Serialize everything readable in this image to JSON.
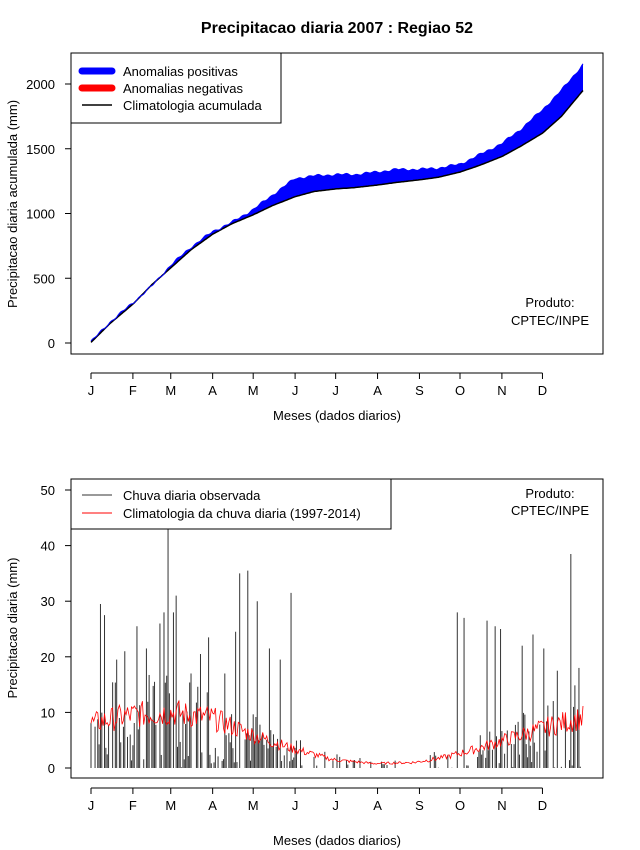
{
  "title": "Precipitacao diaria 2007 : Regiao 52",
  "months": [
    "J",
    "F",
    "M",
    "A",
    "M",
    "J",
    "J",
    "A",
    "S",
    "O",
    "N",
    "D"
  ],
  "colors": {
    "positive": "#0000ff",
    "negative": "#ff0000",
    "clim_line": "#000000",
    "obs": "#333333",
    "clim_daily": "#ff0000"
  },
  "chart_data": [
    {
      "type": "area",
      "name": "accumulated",
      "xlabel": "Meses (dados diarios)",
      "ylabel": "Precipitacao diaria acumulada (mm)",
      "ylim": [
        0,
        2200
      ],
      "yticks": [
        0,
        500,
        1000,
        1500,
        2000
      ],
      "legend_position": "top-left",
      "legend": [
        "Anomalias positivas",
        "Anomalias negativas",
        "Climatologia acumulada"
      ],
      "credit": [
        "Produto:",
        "CPTEC/INPE"
      ],
      "x_days": [
        1,
        15,
        32,
        46,
        60,
        75,
        91,
        105,
        121,
        135,
        152,
        166,
        182,
        196,
        213,
        227,
        244,
        258,
        274,
        288,
        305,
        319,
        335,
        349,
        365
      ],
      "climatology": [
        5,
        150,
        300,
        450,
        580,
        720,
        840,
        920,
        990,
        1060,
        1130,
        1170,
        1190,
        1200,
        1220,
        1240,
        1260,
        1280,
        1320,
        1370,
        1440,
        1520,
        1620,
        1750,
        1950
      ],
      "observed": [
        10,
        160,
        310,
        440,
        600,
        740,
        860,
        930,
        1030,
        1140,
        1270,
        1290,
        1300,
        1300,
        1320,
        1340,
        1340,
        1350,
        1380,
        1450,
        1540,
        1650,
        1800,
        1950,
        2150
      ]
    },
    {
      "type": "bar",
      "name": "daily",
      "xlabel": "Meses (dados diarios)",
      "ylabel": "Precipitacao diaria (mm)",
      "ylim": [
        0,
        50
      ],
      "yticks": [
        0,
        10,
        20,
        30,
        40,
        50
      ],
      "legend_position": "top-left",
      "legend": [
        "Chuva diaria observada",
        "Climatologia da chuva diaria (1997-2014)"
      ],
      "credit": [
        "Produto:",
        "CPTEC/INPE"
      ],
      "observed_peaks": [
        [
          8,
          29.5
        ],
        [
          11,
          27.5
        ],
        [
          20,
          19.5
        ],
        [
          26,
          21
        ],
        [
          35,
          25.5
        ],
        [
          42,
          21.5
        ],
        [
          48,
          15.5
        ],
        [
          52,
          26
        ],
        [
          55,
          28
        ],
        [
          58,
          43.5
        ],
        [
          62,
          28
        ],
        [
          64,
          31
        ],
        [
          75,
          17
        ],
        [
          82,
          20.5
        ],
        [
          88,
          23.5
        ],
        [
          100,
          17
        ],
        [
          108,
          24.5
        ],
        [
          111,
          35
        ],
        [
          117,
          35.5
        ],
        [
          124,
          30
        ],
        [
          133,
          21.5
        ],
        [
          141,
          19.5
        ],
        [
          149,
          31.5
        ],
        [
          272,
          28
        ],
        [
          277,
          27
        ],
        [
          294,
          26.5
        ],
        [
          300,
          25.5
        ],
        [
          304,
          25
        ],
        [
          320,
          22
        ],
        [
          328,
          24
        ],
        [
          336,
          21.5
        ],
        [
          346,
          17.5
        ],
        [
          356,
          38.5
        ],
        [
          362,
          18
        ]
      ],
      "climatology_points": [
        [
          1,
          8
        ],
        [
          30,
          9.5
        ],
        [
          60,
          10
        ],
        [
          90,
          9
        ],
        [
          120,
          6
        ],
        [
          150,
          3.5
        ],
        [
          180,
          1.5
        ],
        [
          210,
          0.8
        ],
        [
          240,
          1
        ],
        [
          260,
          1.8
        ],
        [
          280,
          3
        ],
        [
          300,
          4.5
        ],
        [
          320,
          6
        ],
        [
          340,
          7.5
        ],
        [
          355,
          8.5
        ],
        [
          365,
          9
        ]
      ]
    }
  ]
}
